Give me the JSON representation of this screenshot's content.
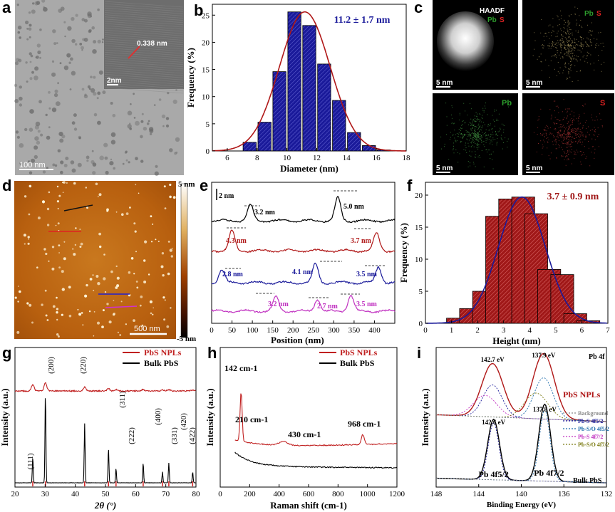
{
  "panel_letters": [
    "a",
    "b",
    "c",
    "d",
    "e",
    "f",
    "g",
    "h",
    "i"
  ],
  "panel_a": {
    "scale_main": "100 nm",
    "scale_inset": "2nm",
    "lattice": "0.338 nm"
  },
  "panel_c": {
    "haadf": "HAADF",
    "pbs_pb": "Pb",
    "pbs_s": "S",
    "pb": "Pb",
    "s": "S",
    "scale": "5 nm"
  },
  "panel_d": {
    "cb_top": "5 nm",
    "cb_bottom": "-5 nm",
    "scale": "500 nm"
  },
  "panel_e": {
    "xlabel": "Position (nm)",
    "scale": "2 nm",
    "xticks": [
      "0",
      "50",
      "100",
      "150",
      "200",
      "250",
      "300",
      "350",
      "400"
    ],
    "labels": [
      "3.2 nm",
      "5.0 nm",
      "4.3 nm",
      "3.7 nm",
      "2.8 nm",
      "4.1 nm",
      "3.5 nm",
      "3.2 nm",
      "2.7 nm",
      "3.5 nm"
    ]
  },
  "panel_i": {
    "legend": [
      "Background",
      "Pb-S 4f5/2",
      "Pb-S/O 4f5/2",
      "Pb-S 4f7/2",
      "Pb-S/O 4f7/2"
    ],
    "peaks_top": [
      "142.7 eV",
      "137.9 eV"
    ],
    "peaks_bot": [
      "142.6 eV",
      "137.8 eV"
    ],
    "pb4f": "Pb 4f",
    "npl": "PbS NPLs",
    "bulk": "Bulk PbS",
    "p52": "Pb 4f5/2",
    "p72": "Pb 4f7/2",
    "xlabel": "Binding Energy (eV)",
    "ylabel": "Intensity (a.u.)",
    "xticks": [
      "148",
      "144",
      "140",
      "136",
      "132"
    ]
  },
  "chart_data": [
    {
      "id": "b",
      "type": "bar",
      "annotation": "11.2 ± 1.7 nm",
      "xlabel": "Diameter (nm)",
      "ylabel": "Frequency (%)",
      "xlim": [
        5,
        18
      ],
      "ylim": [
        0,
        27
      ],
      "xticks": [
        6,
        8,
        10,
        12,
        14,
        16,
        18
      ],
      "yticks": [
        0,
        5,
        10,
        15,
        20,
        25
      ],
      "x": [
        7.5,
        8.5,
        9.5,
        10.5,
        11.5,
        12.5,
        13.5,
        14.5,
        15.5,
        16.5
      ],
      "values": [
        1.6,
        5.3,
        14.6,
        25.6,
        23.1,
        16.0,
        9.3,
        3.4,
        1.0,
        0.2
      ],
      "fit": {
        "mean": 11.2,
        "sd": 1.7,
        "peak": 25.6
      }
    },
    {
      "id": "f",
      "type": "bar",
      "annotation": "3.7 ± 0.9 nm",
      "xlabel": "Height (nm)",
      "ylabel": "Frequency (%)",
      "xlim": [
        0,
        7
      ],
      "ylim": [
        0,
        22
      ],
      "xticks": [
        0,
        1,
        2,
        3,
        4,
        5,
        6,
        7
      ],
      "yticks": [
        0,
        5,
        10,
        15,
        20
      ],
      "x": [
        1.25,
        1.75,
        2.25,
        2.75,
        3.25,
        3.75,
        4.25,
        4.75,
        5.25,
        5.75,
        6.25
      ],
      "values": [
        0.8,
        2.3,
        5.0,
        16.7,
        19.4,
        19.7,
        17.1,
        8.4,
        7.6,
        1.5,
        0.4
      ],
      "fit": {
        "mean": 3.7,
        "sd": 0.9,
        "peak": 19.7
      }
    },
    {
      "id": "g",
      "type": "line",
      "xlabel": "2θ (°)",
      "ylabel": "Intensity (a.u.)",
      "xlim": [
        20,
        80
      ],
      "xticks": [
        20,
        30,
        40,
        50,
        60,
        70,
        80
      ],
      "legend": [
        "PbS NPLs",
        "Bulk PbS"
      ],
      "peaks": [
        25.9,
        30.1,
        43.1,
        51.0,
        53.5,
        62.5,
        68.9,
        71.0,
        78.9
      ],
      "bulk_heights": [
        0.28,
        0.98,
        0.65,
        0.38,
        0.16,
        0.22,
        0.12,
        0.22,
        0.12
      ],
      "npl_heights": [
        0.22,
        0.28,
        0.14,
        0.08,
        0.05,
        0.05,
        0.04,
        0.05,
        0.03
      ],
      "hkl": [
        "(111)",
        "(200)",
        "(220)",
        "(311)",
        "(222)",
        "(400)",
        "(331)",
        "(420)",
        "(422)"
      ]
    },
    {
      "id": "h",
      "type": "line",
      "xlabel": "Raman shift (cm-1)",
      "ylabel": "Intensity (a.u.)",
      "xlim": [
        0,
        1200
      ],
      "xticks": [
        0,
        200,
        400,
        600,
        800,
        1000,
        1200
      ],
      "legend": [
        "PbS NPLs",
        "Bulk PbS"
      ],
      "annotations": [
        "142 cm-1",
        "210 cm-1",
        "430 cm-1",
        "968 cm-1"
      ]
    }
  ]
}
